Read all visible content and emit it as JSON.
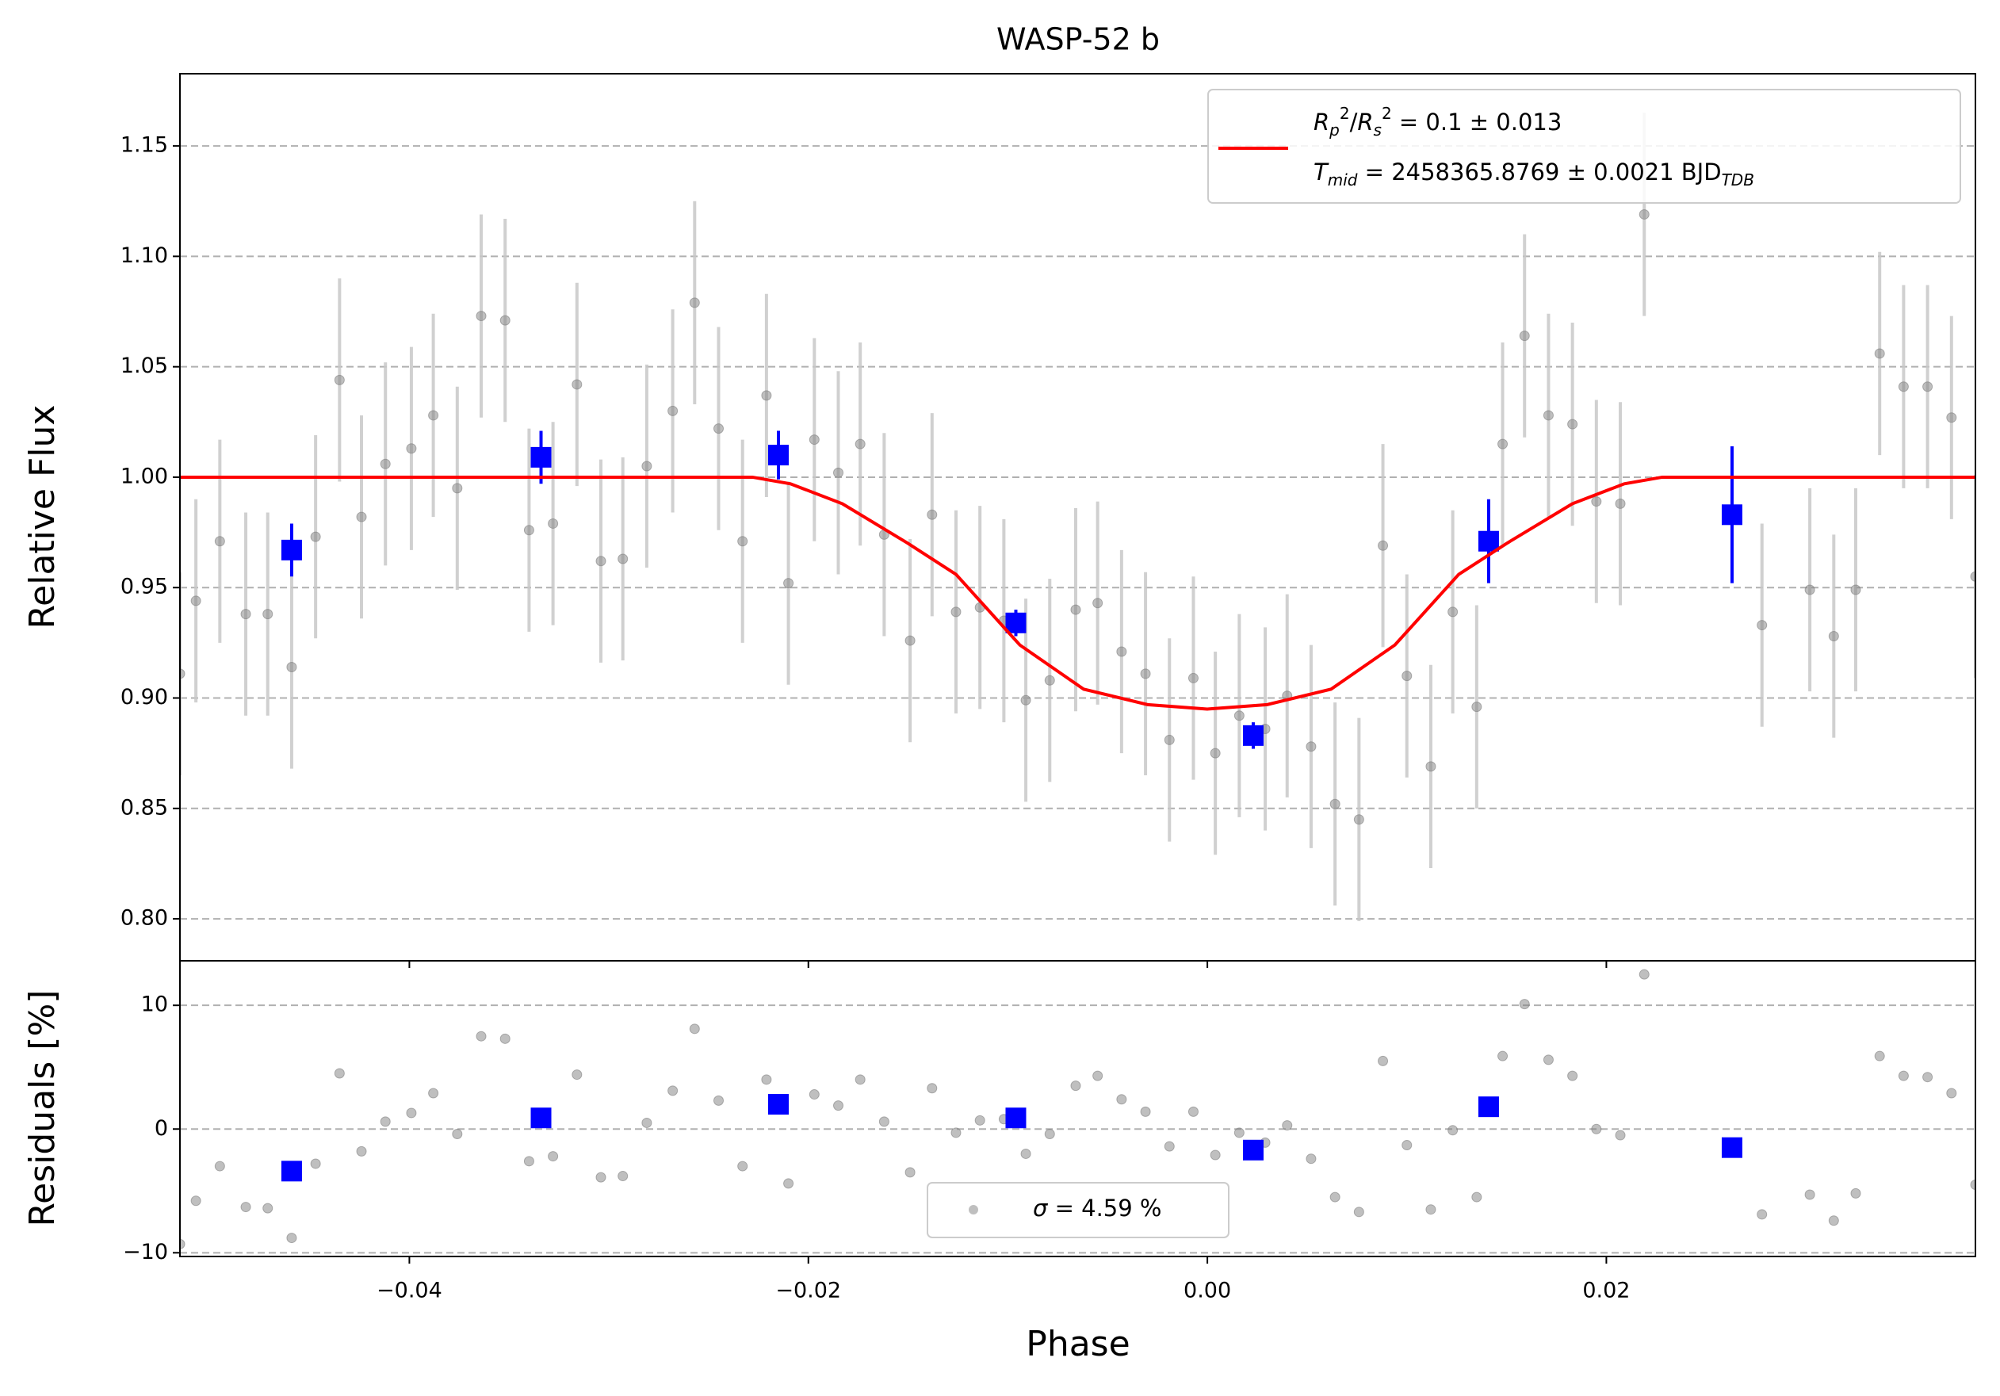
{
  "chart_data": [
    {
      "type": "scatter",
      "title": "WASP-52 b",
      "y_label": "Relative Flux",
      "grid": true,
      "legend_corner": "upper right",
      "xlim": [
        -0.0515,
        0.0385
      ],
      "ylim": [
        0.781,
        1.1827
      ],
      "yticks": [
        {
          "value": 0.8,
          "label": "0.80"
        },
        0.85,
        {
          "value": 0.9,
          "label": "0.90"
        },
        0.95,
        {
          "value": 1.0,
          "label": "1.00"
        },
        1.05,
        {
          "value": 1.1,
          "label": "1.10"
        },
        1.15
      ],
      "series": [
        {
          "type": "errorbar",
          "color": "#808080",
          "error_color": "#c8c8c8",
          "x": [
            -0.0515,
            -0.0507,
            -0.0495,
            -0.0482,
            -0.0471,
            -0.0459,
            -0.0447,
            -0.0435,
            -0.0424,
            -0.0412,
            -0.0399,
            -0.0388,
            -0.0376,
            -0.0364,
            -0.0352,
            -0.034,
            -0.0328,
            -0.0316,
            -0.0304,
            -0.0293,
            -0.0281,
            -0.0268,
            -0.0257,
            -0.0245,
            -0.0233,
            -0.0221,
            -0.021,
            -0.0197,
            -0.0185,
            -0.0174,
            -0.0162,
            -0.0149,
            -0.0138,
            -0.0126,
            -0.0114,
            -0.0102,
            -0.0091,
            -0.0079,
            -0.0066,
            -0.0055,
            -0.0043,
            -0.0031,
            -0.0019,
            -0.0007,
            0.0004,
            0.0016,
            0.0029,
            0.004,
            0.0052,
            0.0064,
            0.0076,
            0.0088,
            0.01,
            0.0112,
            0.0123,
            0.0135,
            0.0148,
            0.0159,
            0.0171,
            0.0183,
            0.0195,
            0.0207,
            0.0219,
            0.0278,
            0.0302,
            0.0314,
            0.0325,
            0.0337,
            0.0349,
            0.0361,
            0.0373,
            0.0385
          ],
          "values": [
            0.911,
            0.944,
            0.971,
            0.938,
            0.938,
            0.914,
            0.973,
            1.044,
            0.982,
            1.006,
            1.013,
            1.028,
            0.995,
            1.073,
            1.071,
            0.976,
            0.979,
            1.042,
            0.962,
            0.963,
            1.005,
            1.03,
            1.079,
            1.022,
            0.971,
            1.037,
            0.952,
            1.017,
            1.002,
            1.015,
            0.974,
            0.926,
            0.983,
            0.939,
            0.941,
            0.935,
            0.899,
            0.908,
            0.94,
            0.943,
            0.921,
            0.911,
            0.881,
            0.909,
            0.875,
            0.892,
            0.886,
            0.901,
            0.878,
            0.852,
            0.845,
            0.969,
            0.91,
            0.869,
            0.939,
            0.896,
            1.015,
            1.064,
            1.028,
            1.024,
            0.989,
            0.988,
            1.119,
            0.933,
            0.949,
            0.928,
            0.949,
            1.056,
            1.041,
            1.041,
            1.027,
            0.955
          ],
          "errors": [
            0.046,
            0.046,
            0.046,
            0.046,
            0.046,
            0.046,
            0.046,
            0.046,
            0.046,
            0.046,
            0.046,
            0.046,
            0.046,
            0.046,
            0.046,
            0.046,
            0.046,
            0.046,
            0.046,
            0.046,
            0.046,
            0.046,
            0.046,
            0.046,
            0.046,
            0.046,
            0.046,
            0.046,
            0.046,
            0.046,
            0.046,
            0.046,
            0.046,
            0.046,
            0.046,
            0.046,
            0.046,
            0.046,
            0.046,
            0.046,
            0.046,
            0.046,
            0.046,
            0.046,
            0.046,
            0.046,
            0.046,
            0.046,
            0.046,
            0.046,
            0.046,
            0.046,
            0.046,
            0.046,
            0.046,
            0.046,
            0.046,
            0.046,
            0.046,
            0.046,
            0.046,
            0.046,
            0.046,
            0.046,
            0.046,
            0.046,
            0.046,
            0.046,
            0.046,
            0.046,
            0.046,
            0.046
          ]
        },
        {
          "type": "errorbar",
          "color": "#0000ff",
          "error_color": "#0000ff",
          "marker": "square",
          "x": [
            -0.0459,
            -0.0334,
            -0.0215,
            -0.0096,
            0.0023,
            0.0141,
            0.0263
          ],
          "values": [
            0.967,
            1.009,
            1.01,
            0.934,
            0.883,
            0.971,
            0.983
          ],
          "errors": [
            0.012,
            0.012,
            0.011,
            0.006,
            0.006,
            0.019,
            0.031
          ]
        },
        {
          "type": "line",
          "color": "#ff0000",
          "name": [
            [
              {
                "text": "R",
                "italic": true,
                "pos": "base"
              },
              {
                "text": "p",
                "italic": true,
                "pos": "sub"
              },
              {
                "text": "2",
                "italic": false,
                "pos": "sup"
              },
              {
                "text": "/",
                "italic": false,
                "pos": "base"
              },
              {
                "text": "R",
                "italic": true,
                "pos": "base"
              },
              {
                "text": "s",
                "italic": true,
                "pos": "sub"
              },
              {
                "text": "2",
                "italic": false,
                "pos": "sup"
              },
              {
                "text": " = 0.1 ± 0.013",
                "italic": false,
                "pos": "base"
              }
            ],
            [
              {
                "text": "T",
                "italic": true,
                "pos": "base"
              },
              {
                "text": "mid",
                "italic": true,
                "pos": "sub"
              },
              {
                "text": " = 2458365.8769 ± 0.0021 BJD",
                "italic": false,
                "pos": "base"
              },
              {
                "text": "TDB",
                "italic": true,
                "pos": "sub"
              }
            ]
          ],
          "x": [
            -0.0515,
            -0.0228,
            -0.0209,
            -0.0183,
            -0.015,
            -0.0126,
            -0.0094,
            -0.0062,
            -0.003,
            0,
            0.003,
            0.0062,
            0.0094,
            0.0126,
            0.015,
            0.0183,
            0.0209,
            0.0228,
            0.0385
          ],
          "values": [
            1,
            1,
            0.997,
            0.988,
            0.97,
            0.956,
            0.924,
            0.904,
            0.897,
            0.895,
            0.897,
            0.904,
            0.924,
            0.956,
            0.97,
            0.988,
            0.997,
            1,
            1
          ]
        }
      ]
    },
    {
      "type": "scatter",
      "y_label": "Residuals [%]",
      "x_label": "Phase",
      "grid": true,
      "legend_corner": "lower center",
      "xlim": [
        -0.0515,
        0.0385
      ],
      "ylim": [
        -10.3,
        13.6
      ],
      "xticks": [
        {
          "value": -0.04,
          "label": "−0.04"
        },
        {
          "value": -0.02,
          "label": "−0.02"
        },
        {
          "value": 0,
          "label": "0.00"
        },
        0.02
      ],
      "yticks": [
        {
          "value": -10,
          "label": "−10"
        },
        0,
        10
      ],
      "series": [
        {
          "type": "scatter",
          "color": "#808080",
          "name": [
            [
              {
                "text": "σ",
                "italic": true,
                "pos": "base"
              },
              {
                "text": " = 4.59 %",
                "italic": false,
                "pos": "base"
              }
            ]
          ],
          "x": [
            -0.0515,
            -0.0507,
            -0.0495,
            -0.0482,
            -0.0471,
            -0.0459,
            -0.0447,
            -0.0435,
            -0.0424,
            -0.0412,
            -0.0399,
            -0.0388,
            -0.0376,
            -0.0364,
            -0.0352,
            -0.034,
            -0.0328,
            -0.0316,
            -0.0304,
            -0.0293,
            -0.0281,
            -0.0268,
            -0.0257,
            -0.0245,
            -0.0233,
            -0.0221,
            -0.021,
            -0.0197,
            -0.0185,
            -0.0174,
            -0.0162,
            -0.0149,
            -0.0138,
            -0.0126,
            -0.0114,
            -0.0102,
            -0.0091,
            -0.0079,
            -0.0066,
            -0.0055,
            -0.0043,
            -0.0031,
            -0.0019,
            -0.0007,
            0.0004,
            0.0016,
            0.0029,
            0.004,
            0.0052,
            0.0064,
            0.0076,
            0.0088,
            0.01,
            0.0112,
            0.0123,
            0.0135,
            0.0148,
            0.0159,
            0.0171,
            0.0183,
            0.0195,
            0.0207,
            0.0219,
            0.0278,
            0.0302,
            0.0314,
            0.0325,
            0.0337,
            0.0349,
            0.0361,
            0.0373,
            0.0385
          ],
          "values": [
            -9.3,
            -5.8,
            -3.0,
            -6.3,
            -6.4,
            -8.8,
            -2.8,
            4.5,
            -1.8,
            0.6,
            1.3,
            2.9,
            -0.4,
            7.5,
            7.3,
            -2.6,
            -2.2,
            4.4,
            -3.9,
            -3.8,
            0.5,
            3.1,
            8.1,
            2.3,
            -3.0,
            4.0,
            -4.4,
            2.8,
            1.9,
            4.0,
            0.6,
            -3.5,
            3.3,
            -0.3,
            0.7,
            0.8,
            -2.0,
            -0.4,
            3.5,
            4.3,
            2.4,
            1.4,
            -1.4,
            1.4,
            -2.1,
            -0.3,
            -1.1,
            0.3,
            -2.4,
            -5.5,
            -6.7,
            5.5,
            -1.3,
            -6.5,
            -0.1,
            -5.5,
            5.9,
            10.1,
            5.6,
            4.3,
            0,
            -0.5,
            12.5,
            -6.9,
            -5.3,
            -7.4,
            -5.2,
            5.9,
            4.3,
            4.2,
            2.9,
            -4.5
          ]
        },
        {
          "type": "scatter",
          "color": "#0000ff",
          "marker": "square",
          "x": [
            -0.0459,
            -0.0334,
            -0.0215,
            -0.0096,
            0.0023,
            0.0141,
            0.0263
          ],
          "values": [
            -3.4,
            0.9,
            2.0,
            0.9,
            -1.7,
            1.8,
            -1.5
          ]
        }
      ]
    }
  ]
}
